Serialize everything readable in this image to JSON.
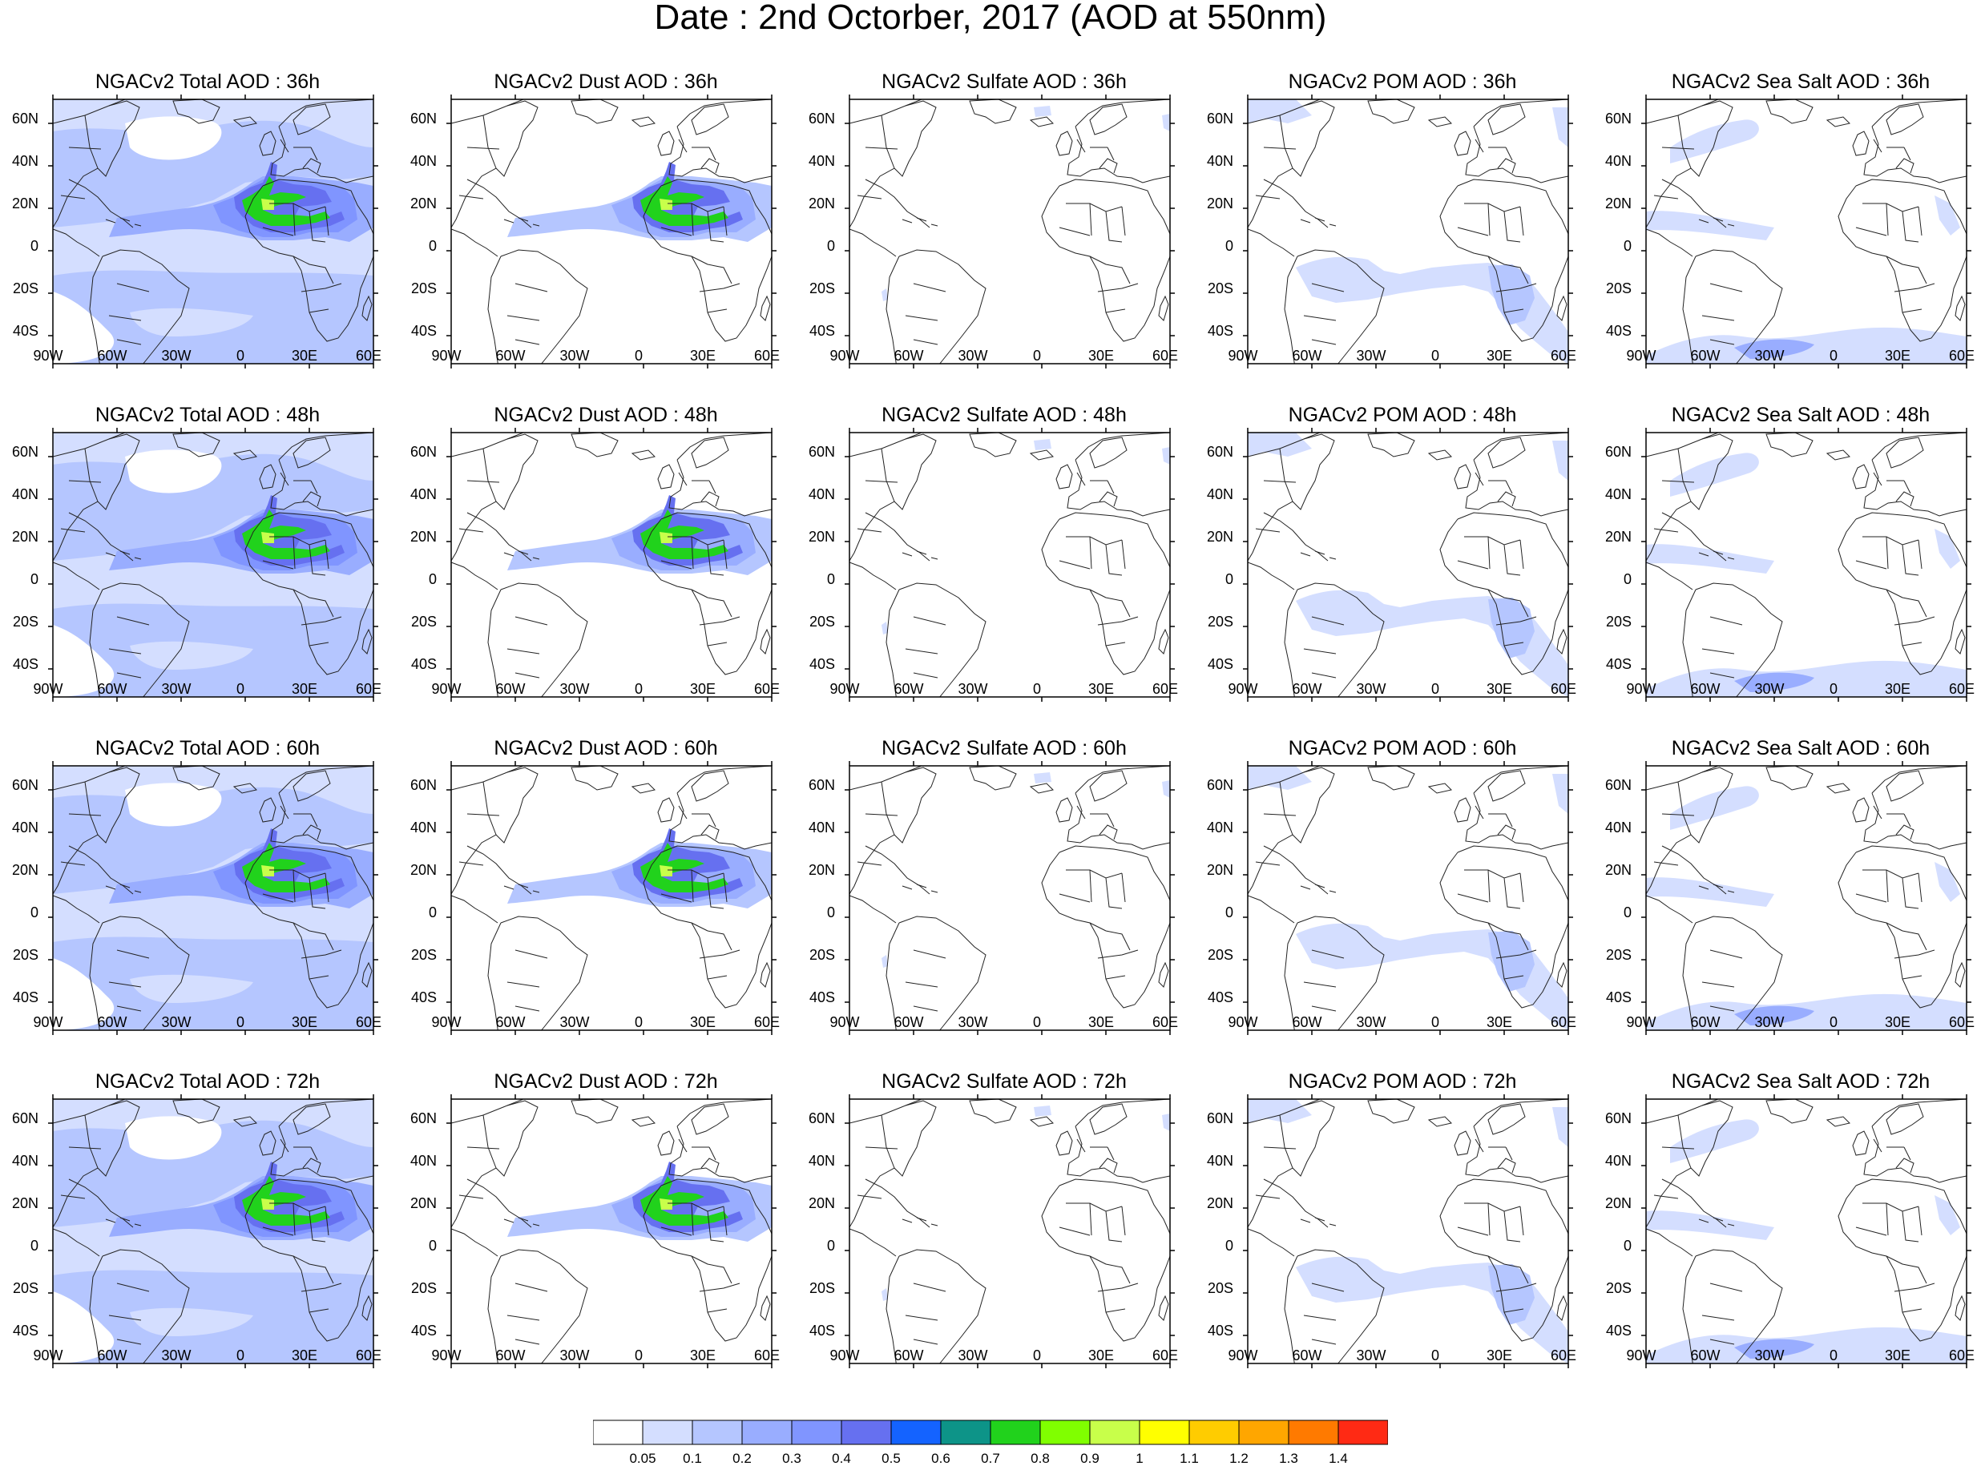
{
  "title": "Date : 2nd Octorber, 2017 (AOD at 550nm)",
  "lat_labels": [
    "60N",
    "40N",
    "20N",
    "0",
    "20S",
    "40S"
  ],
  "lon_labels": [
    "90W",
    "60W",
    "30W",
    "0",
    "30E",
    "60E"
  ],
  "rows": [
    {
      "hour": "36h",
      "panels": [
        {
          "species": "total",
          "title": "NGACv2 Total AOD : 36h"
        },
        {
          "species": "dust",
          "title": "NGACv2 Dust AOD : 36h"
        },
        {
          "species": "sulfate",
          "title": "NGACv2 Sulfate AOD : 36h"
        },
        {
          "species": "pom",
          "title": "NGACv2 POM AOD : 36h"
        },
        {
          "species": "seasalt",
          "title": "NGACv2 Sea Salt AOD : 36h"
        }
      ]
    },
    {
      "hour": "48h",
      "panels": [
        {
          "species": "total",
          "title": "NGACv2 Total AOD : 48h"
        },
        {
          "species": "dust",
          "title": "NGACv2 Dust AOD : 48h"
        },
        {
          "species": "sulfate",
          "title": "NGACv2 Sulfate AOD : 48h"
        },
        {
          "species": "pom",
          "title": "NGACv2 POM AOD : 48h"
        },
        {
          "species": "seasalt",
          "title": "NGACv2 Sea Salt AOD : 48h"
        }
      ]
    },
    {
      "hour": "60h",
      "panels": [
        {
          "species": "total",
          "title": "NGACv2 Total AOD : 60h"
        },
        {
          "species": "dust",
          "title": "NGACv2 Dust AOD : 60h"
        },
        {
          "species": "sulfate",
          "title": "NGACv2 Sulfate AOD : 60h"
        },
        {
          "species": "pom",
          "title": "NGACv2 POM AOD : 60h"
        },
        {
          "species": "seasalt",
          "title": "NGACv2 Sea Salt AOD : 60h"
        }
      ]
    },
    {
      "hour": "72h",
      "panels": [
        {
          "species": "total",
          "title": "NGACv2 Total AOD : 72h"
        },
        {
          "species": "dust",
          "title": "NGACv2 Dust AOD : 72h"
        },
        {
          "species": "sulfate",
          "title": "NGACv2 Sulfate AOD : 72h"
        },
        {
          "species": "pom",
          "title": "NGACv2 POM AOD : 72h"
        },
        {
          "species": "seasalt",
          "title": "NGACv2 Sea Salt  AOD : 72h"
        }
      ]
    }
  ],
  "colorbar": {
    "colors": [
      "#ffffff",
      "#d4deff",
      "#b5c6ff",
      "#99adff",
      "#8095ff",
      "#6670f0",
      "#1463ff",
      "#0d9488",
      "#21d21c",
      "#80ff00",
      "#c8ff4a",
      "#ffff00",
      "#ffcc00",
      "#ffa600",
      "#ff7a00",
      "#ff2a14"
    ],
    "labels": [
      "0.05",
      "0.1",
      "0.2",
      "0.3",
      "0.4",
      "0.5",
      "0.6",
      "0.7",
      "0.8",
      "0.9",
      "1",
      "1.1",
      "1.2",
      "1.3",
      "1.4"
    ]
  }
}
